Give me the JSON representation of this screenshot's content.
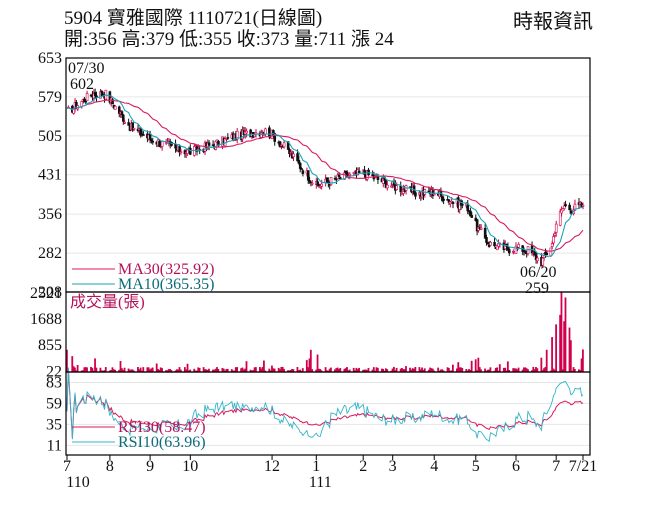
{
  "header": {
    "title": "5904 寶雅國際 1110721(日線圖)",
    "summary": "開:356 高:379 低:355 收:373 量:711 漲 24",
    "source": "時報資訊"
  },
  "colors": {
    "candle_up": "#d2004c",
    "candle_down": "#111111",
    "ma30": "#d81b60",
    "ma10": "#1aa3b8",
    "volume": "#d2004c",
    "rsi30": "#d81b60",
    "rsi10": "#35b4c8",
    "grid": "#e6e6e6",
    "frame": "#000000"
  },
  "chart_data": [
    {
      "type": "candlestick",
      "name": "price",
      "y_ticks": [
        653,
        579,
        505,
        431,
        356,
        282,
        208
      ],
      "ylim": [
        208,
        653
      ],
      "x_ticks": [
        {
          "label": "7",
          "date": "2021-07-01"
        },
        {
          "label": "8",
          "date": "2021-08-02"
        },
        {
          "label": "9",
          "date": "2021-09-01"
        },
        {
          "label": "10",
          "date": "2021-10-01"
        },
        {
          "label": "12",
          "date": "2021-12-01"
        },
        {
          "label": "1",
          "date": "2022-01-03"
        },
        {
          "label": "2",
          "date": "2022-02-07"
        },
        {
          "label": "3",
          "date": "2022-03-01"
        },
        {
          "label": "4",
          "date": "2022-04-01"
        },
        {
          "label": "5",
          "date": "2022-05-02"
        },
        {
          "label": "6",
          "date": "2022-06-01"
        },
        {
          "label": "7",
          "date": "2022-07-01"
        },
        {
          "label": "7/21",
          "date": "2022-07-21"
        }
      ],
      "year_labels": [
        {
          "label": "110",
          "date": "2021-07-01"
        },
        {
          "label": "111",
          "date": "2022-01-03"
        }
      ],
      "anchors": [
        {
          "date": "2021-07-01",
          "close": 550
        },
        {
          "date": "2021-07-20",
          "close": 585
        },
        {
          "date": "2021-07-30",
          "close": 585
        },
        {
          "date": "2021-08-06",
          "close": 560
        },
        {
          "date": "2021-08-18",
          "close": 520
        },
        {
          "date": "2021-09-01",
          "close": 500
        },
        {
          "date": "2021-09-20",
          "close": 480
        },
        {
          "date": "2021-10-01",
          "close": 475
        },
        {
          "date": "2021-10-20",
          "close": 490
        },
        {
          "date": "2021-11-05",
          "close": 505
        },
        {
          "date": "2021-11-25",
          "close": 515
        },
        {
          "date": "2021-12-01",
          "close": 508
        },
        {
          "date": "2021-12-15",
          "close": 470
        },
        {
          "date": "2022-01-03",
          "close": 410
        },
        {
          "date": "2022-01-20",
          "close": 425
        },
        {
          "date": "2022-02-07",
          "close": 435
        },
        {
          "date": "2022-03-01",
          "close": 410
        },
        {
          "date": "2022-03-20",
          "close": 395
        },
        {
          "date": "2022-04-01",
          "close": 398
        },
        {
          "date": "2022-04-15",
          "close": 380
        },
        {
          "date": "2022-04-26",
          "close": 370
        },
        {
          "date": "2022-05-02",
          "close": 335
        },
        {
          "date": "2022-05-12",
          "close": 300
        },
        {
          "date": "2022-05-25",
          "close": 290
        },
        {
          "date": "2022-06-01",
          "close": 292
        },
        {
          "date": "2022-06-10",
          "close": 288
        },
        {
          "date": "2022-06-20",
          "close": 265
        },
        {
          "date": "2022-06-28",
          "close": 300
        },
        {
          "date": "2022-07-01",
          "close": 340
        },
        {
          "date": "2022-07-07",
          "close": 372
        },
        {
          "date": "2022-07-12",
          "close": 366
        },
        {
          "date": "2022-07-21",
          "close": 373
        }
      ],
      "high_annotation": {
        "date": "07/30",
        "value": 602
      },
      "low_annotation": {
        "date": "06/20",
        "value": 259
      },
      "ma_legend": [
        {
          "name": "MA30",
          "label": "MA30(325.92)",
          "value": 325.92
        },
        {
          "name": "MA10",
          "label": "MA10(365.35)",
          "value": 365.35
        }
      ]
    },
    {
      "type": "bar",
      "name": "volume",
      "title": "成交量(張)",
      "y_ticks": [
        2521,
        1688,
        855,
        22
      ],
      "ylim": [
        0,
        2521
      ],
      "typical_volume": 90,
      "spikes": [
        {
          "date": "2021-07-01",
          "value": 700
        },
        {
          "date": "2021-07-05",
          "value": 500
        },
        {
          "date": "2021-12-30",
          "value": 700
        },
        {
          "date": "2022-01-04",
          "value": 550
        },
        {
          "date": "2022-05-02",
          "value": 400
        },
        {
          "date": "2022-05-04",
          "value": 450
        },
        {
          "date": "2022-06-20",
          "value": 450
        },
        {
          "date": "2022-06-24",
          "value": 700
        },
        {
          "date": "2022-06-28",
          "value": 1100
        },
        {
          "date": "2022-07-01",
          "value": 1500
        },
        {
          "date": "2022-07-04",
          "value": 1800
        },
        {
          "date": "2022-07-05",
          "value": 2521
        },
        {
          "date": "2022-07-07",
          "value": 1600
        },
        {
          "date": "2022-07-08",
          "value": 2350
        },
        {
          "date": "2022-07-11",
          "value": 1400
        },
        {
          "date": "2022-07-12",
          "value": 1000
        },
        {
          "date": "2022-07-21",
          "value": 711
        }
      ]
    },
    {
      "type": "line",
      "name": "rsi",
      "y_ticks": [
        83,
        59,
        35,
        11
      ],
      "ylim": [
        0,
        95
      ],
      "legend": [
        {
          "name": "RSI30",
          "label": "RSI30(58.47)",
          "value": 58.47
        },
        {
          "name": "RSI10",
          "label": "RSI10(63.96)",
          "value": 63.96
        }
      ]
    }
  ]
}
